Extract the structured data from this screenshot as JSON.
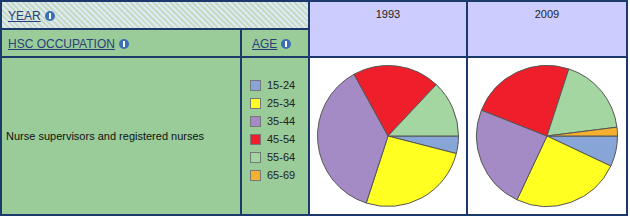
{
  "header": {
    "year": "YEAR",
    "occupation": "HSC OCCUPATION",
    "age": "AGE"
  },
  "row_label": "Nurse supervisors and registered nurses",
  "chart_data": [
    {
      "type": "pie",
      "title": "1993",
      "categories": [
        "15-24",
        "25-34",
        "35-44",
        "45-54",
        "55-64",
        "65-69"
      ],
      "values": [
        4,
        26,
        37,
        20,
        13,
        0
      ],
      "colors": [
        "#87a5d6",
        "#ffff22",
        "#a58bc6",
        "#ee1f2a",
        "#a3d6a0",
        "#f5b030"
      ]
    },
    {
      "type": "pie",
      "title": "2009",
      "categories": [
        "15-24",
        "25-34",
        "35-44",
        "45-54",
        "55-64",
        "65-69"
      ],
      "values": [
        7,
        25,
        24,
        24,
        18,
        2
      ],
      "colors": [
        "#87a5d6",
        "#ffff22",
        "#a58bc6",
        "#ee1f2a",
        "#a3d6a0",
        "#f5b030"
      ]
    }
  ]
}
